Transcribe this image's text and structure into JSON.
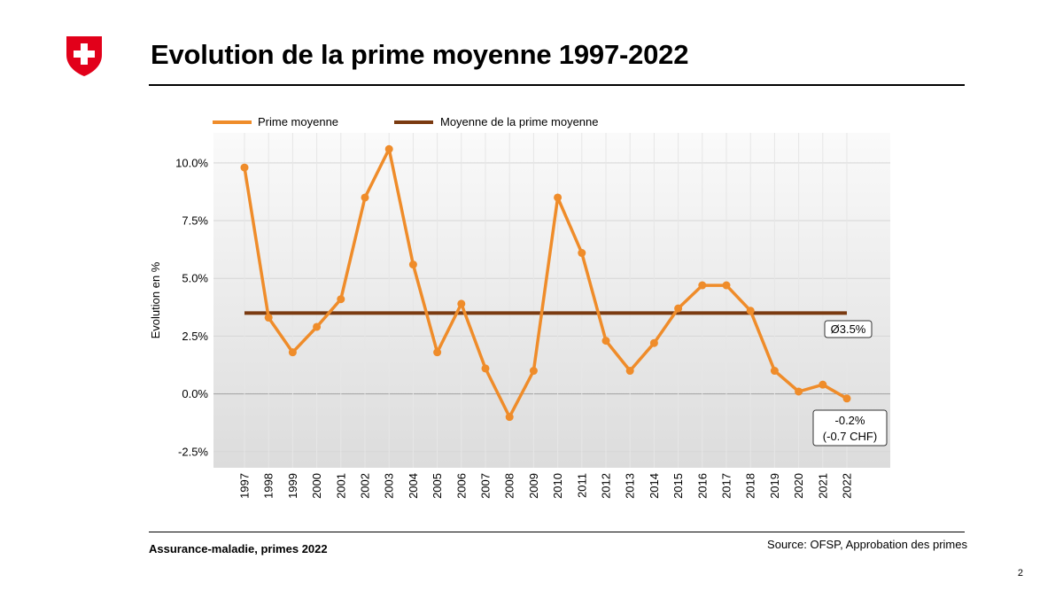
{
  "page": {
    "title": "Evolution de la prime moyenne 1997-2022",
    "footer_left": "Assurance-maladie, primes 2022",
    "footer_right": "Source: OFSP, Approbation  des primes",
    "page_number": "2"
  },
  "colors": {
    "series": "#ef8c2a",
    "average": "#7a3a10",
    "grid": "#d6d6d6",
    "zero_line": "#a8a8a8",
    "logo_red": "#e2001a"
  },
  "chart_data": {
    "type": "line",
    "title": "",
    "xlabel": "",
    "ylabel": "Evolution en %",
    "ylim": [
      -3.2,
      11.3
    ],
    "yticks": [
      -2.5,
      0,
      2.5,
      5,
      7.5,
      10
    ],
    "ytick_labels": [
      "-2.5%",
      "0.0%",
      "2.5%",
      "5.0%",
      "7.5%",
      "10.0%"
    ],
    "legend_position": "top",
    "grid": true,
    "categories": [
      "1997",
      "1998",
      "1999",
      "2000",
      "2001",
      "2002",
      "2003",
      "2004",
      "2005",
      "2006",
      "2007",
      "2008",
      "2009",
      "2010",
      "2011",
      "2012",
      "2013",
      "2014",
      "2015",
      "2016",
      "2017",
      "2018",
      "2019",
      "2020",
      "2021",
      "2022"
    ],
    "series": [
      {
        "name": "Prime moyenne",
        "type": "line",
        "values": [
          9.8,
          3.3,
          1.8,
          2.9,
          4.1,
          8.5,
          10.6,
          5.6,
          1.8,
          3.9,
          1.1,
          -1.0,
          1.0,
          8.5,
          6.1,
          2.3,
          1.0,
          2.2,
          3.7,
          4.7,
          4.7,
          3.6,
          1.0,
          0.1,
          0.4,
          -0.2
        ]
      },
      {
        "name": "Moyenne de la prime moyenne",
        "type": "hline",
        "value": 3.5
      }
    ],
    "annotations": [
      {
        "text": "Ø3.5%"
      },
      {
        "line1": "-0.2%",
        "line2": "(-0.7 CHF)"
      }
    ]
  }
}
